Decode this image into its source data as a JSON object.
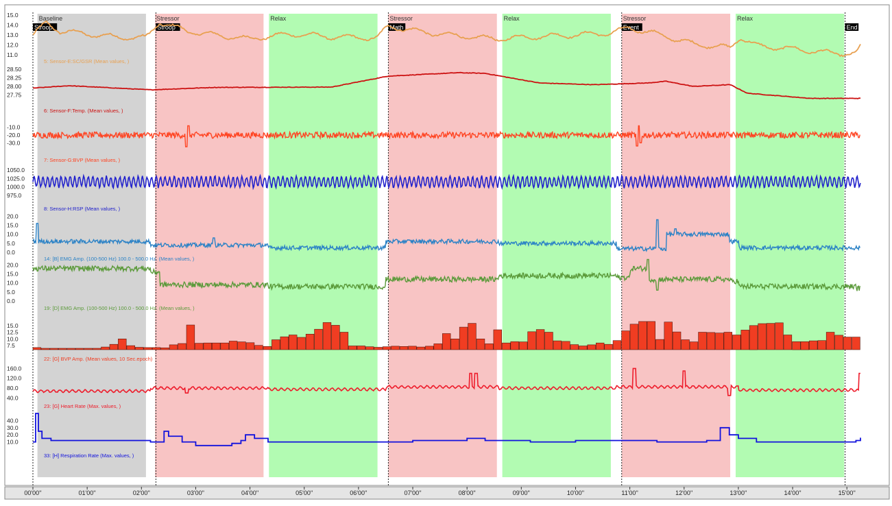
{
  "chart_data": {
    "type": "line",
    "time_range_sec": [
      0,
      915
    ],
    "x_ticks": [
      "00'00''",
      "01'00''",
      "02'00''",
      "03'00''",
      "04'00''",
      "05'00''",
      "06'00''",
      "07'00''",
      "08'00''",
      "09'00''",
      "10'00''",
      "11'00''",
      "12'00''",
      "13'00''",
      "14'00''",
      "15'00''"
    ],
    "phases": [
      {
        "label": "Baseline",
        "start": 5,
        "end": 125,
        "color": "#d3d3d3"
      },
      {
        "label": "Stressor",
        "start": 135,
        "end": 255,
        "color": "#f8c4c4"
      },
      {
        "label": "Relax",
        "start": 261,
        "end": 381,
        "color": "#b2fbb2"
      },
      {
        "label": "Stressor",
        "start": 393,
        "end": 513,
        "color": "#f8c4c4"
      },
      {
        "label": "Relax",
        "start": 519,
        "end": 639,
        "color": "#b2fbb2"
      },
      {
        "label": "Stressor",
        "start": 651,
        "end": 771,
        "color": "#f8c4c4"
      },
      {
        "label": "Relax",
        "start": 777,
        "end": 897,
        "color": "#b2fbb2"
      }
    ],
    "events": [
      {
        "label": "Stroop",
        "t": 0
      },
      {
        "label": "Stroop",
        "t": 136
      },
      {
        "label": "Math",
        "t": 393
      },
      {
        "label": "Event",
        "t": 651
      },
      {
        "label": "End",
        "t": 898
      }
    ],
    "series": [
      {
        "name": "5: Sensor-E:SC/GSR (Mean values, )",
        "color": "#e8a050",
        "type": "line",
        "ticks": [
          "15.0",
          "14.0",
          "13.0",
          "12.0",
          "11.0"
        ],
        "ylim": [
          11,
          15
        ],
        "points": [
          [
            0,
            13
          ],
          [
            15,
            14.2
          ],
          [
            30,
            13.4
          ],
          [
            60,
            13.1
          ],
          [
            90,
            12.8
          ],
          [
            125,
            12.7
          ],
          [
            140,
            14.3
          ],
          [
            170,
            13.4
          ],
          [
            200,
            13.0
          ],
          [
            240,
            12.6
          ],
          [
            255,
            12.8
          ],
          [
            290,
            13.1
          ],
          [
            330,
            12.8
          ],
          [
            381,
            12.7
          ],
          [
            393,
            13.9
          ],
          [
            430,
            13.3
          ],
          [
            470,
            12.9
          ],
          [
            513,
            12.6
          ],
          [
            550,
            12.8
          ],
          [
            600,
            13.0
          ],
          [
            639,
            13.2
          ],
          [
            660,
            13.7
          ],
          [
            690,
            13.1
          ],
          [
            730,
            12.1
          ],
          [
            771,
            11.7
          ],
          [
            782,
            12.8
          ],
          [
            800,
            11.9
          ],
          [
            840,
            11.6
          ],
          [
            880,
            11.2
          ],
          [
            910,
            11.1
          ],
          [
            915,
            11.8
          ]
        ]
      },
      {
        "name": "6: Sensor-F:Temp. (Mean values, )",
        "color": "#cc1111",
        "type": "line",
        "ticks": [
          "28.50",
          "28.25",
          "28.00",
          "27.75"
        ],
        "ylim": [
          27.6,
          28.6
        ],
        "points": [
          [
            0,
            27.95
          ],
          [
            40,
            28.02
          ],
          [
            130,
            27.9
          ],
          [
            200,
            27.97
          ],
          [
            330,
            27.98
          ],
          [
            393,
            28.3
          ],
          [
            470,
            28.4
          ],
          [
            500,
            28.38
          ],
          [
            560,
            28.1
          ],
          [
            620,
            28.05
          ],
          [
            680,
            28.1
          ],
          [
            700,
            28.15
          ],
          [
            730,
            28.0
          ],
          [
            771,
            28.05
          ],
          [
            790,
            27.8
          ],
          [
            860,
            27.65
          ],
          [
            915,
            27.65
          ]
        ]
      },
      {
        "name": "7: Sensor-G:BVP (Mean values, )",
        "color": "#ff4422",
        "type": "noise",
        "ticks": [
          "-10.0",
          "-20.0",
          "-30.0"
        ],
        "ylim": [
          -35,
          -5
        ],
        "baseline": -20,
        "amplitude": 4,
        "spikes": [
          [
            170,
            -35
          ],
          [
            172,
            -8
          ],
          [
            668,
            -34
          ],
          [
            670,
            -8
          ],
          [
            672,
            -30
          ]
        ]
      },
      {
        "name": "8: Sensor-H:RSP (Mean values, )",
        "color": "#2222cc",
        "type": "wave",
        "ticks": [
          "1050.0",
          "1025.0",
          "1000.0",
          "975.0"
        ],
        "ylim": [
          965,
          1060
        ],
        "baseline": 1015,
        "amplitude": 15,
        "period": 5
      },
      {
        "name": "14: [B] EMG Amp. (100-500 Hz)  100.0 - 500.0 Hz. (Mean values, )",
        "color": "#2b82c6",
        "type": "noise",
        "ticks": [
          "20.0",
          "15.0",
          "10.0",
          "5.0",
          "0.0"
        ],
        "ylim": [
          0,
          22
        ],
        "baseline": 6,
        "amplitude": 1.2,
        "segments": [
          [
            0,
            6
          ],
          [
            130,
            4
          ],
          [
            260,
            2.5
          ],
          [
            390,
            6
          ],
          [
            515,
            5
          ],
          [
            645,
            2
          ],
          [
            700,
            10
          ],
          [
            770,
            6
          ],
          [
            780,
            2.5
          ],
          [
            915,
            3
          ]
        ],
        "spikes": [
          [
            5,
            16
          ],
          [
            200,
            8
          ],
          [
            690,
            18
          ],
          [
            710,
            13
          ]
        ]
      },
      {
        "name": "19: [D] EMG Amp. (100-500 Hz)  100.0 - 500.0 Hz. (Mean values, )",
        "color": "#5b9a3a",
        "type": "noise",
        "ticks": [
          "20.0",
          "15.0",
          "10.0",
          "5.0",
          "0.0"
        ],
        "ylim": [
          0,
          22
        ],
        "baseline": 12,
        "amplitude": 1.5,
        "segments": [
          [
            0,
            18
          ],
          [
            130,
            16
          ],
          [
            140,
            9
          ],
          [
            260,
            8
          ],
          [
            390,
            12
          ],
          [
            515,
            14
          ],
          [
            645,
            13
          ],
          [
            660,
            18
          ],
          [
            680,
            12
          ],
          [
            770,
            11
          ],
          [
            780,
            8
          ],
          [
            910,
            7
          ],
          [
            915,
            10
          ]
        ],
        "spikes": [
          [
            680,
            23
          ],
          [
            690,
            6
          ]
        ]
      },
      {
        "name": "22: [G] BVP Amp. (Mean values, 10 Sec.epoch)",
        "color": "#f03d22",
        "type": "bar",
        "ticks": [
          "15.0",
          "12.5",
          "10.0",
          "7.5"
        ],
        "ylim": [
          6,
          18
        ],
        "values": [
          6.8,
          6.5,
          6.5,
          6.5,
          6.5,
          6.5,
          6.5,
          6.5,
          7,
          8,
          10,
          7.5,
          6.9,
          6.8,
          6.8,
          6.7,
          7.8,
          8.3,
          15.2,
          8.4,
          8.5,
          8.5,
          8.5,
          9.2,
          8.9,
          8.6,
          7.6,
          7.2,
          9.7,
          10.8,
          11.5,
          10.6,
          11.8,
          13.6,
          16.1,
          15.1,
          12.5,
          7.4,
          7.4,
          7.1,
          6.9,
          7.1,
          7.3,
          7.2,
          7.3,
          7.0,
          7.3,
          8.2,
          12.0,
          10.0,
          14.4,
          15.8,
          10.0,
          8.2,
          13.4,
          8.5,
          9.0,
          8.9,
          12.7,
          13.5,
          12.5,
          9.3,
          9.1,
          7.9,
          7.4,
          7.8,
          8.5,
          8.0,
          9.4,
          13.0,
          15.5,
          16.5,
          16.5,
          9.8,
          16.3,
          12.6,
          9.7,
          8.9,
          12.5,
          12.4,
          12.2,
          12.5,
          11.5,
          13.3,
          15.0,
          15.7,
          15.8,
          16.0,
          11.5,
          9.0,
          9.0,
          9.3,
          9.4,
          12.5,
          11.4,
          10.7,
          10.7
        ]
      },
      {
        "name": "23: [G] Heart Rate (Max. values, )",
        "color": "#ee1c2b",
        "type": "wave",
        "ticks": [
          "160.0",
          "120.0",
          "80.0",
          "40.0"
        ],
        "ylim": [
          30,
          175
        ],
        "baseline": 68,
        "amplitude": 5,
        "period": 7,
        "segments": [
          [
            0,
            68
          ],
          [
            130,
            80
          ],
          [
            260,
            75
          ],
          [
            390,
            85
          ],
          [
            515,
            80
          ],
          [
            645,
            85
          ],
          [
            780,
            72
          ],
          [
            910,
            70
          ]
        ],
        "spikes": [
          [
            170,
            60
          ],
          [
            484,
            140
          ],
          [
            490,
            140
          ],
          [
            665,
            160
          ],
          [
            720,
            150
          ],
          [
            770,
            50
          ],
          [
            915,
            140
          ]
        ]
      },
      {
        "name": "33: [H] Respiration Rate (Max. values, )",
        "color": "#1111dd",
        "type": "step",
        "ticks": [
          "40.0",
          "30.0",
          "20.0",
          "10.0"
        ],
        "ylim": [
          0,
          50
        ],
        "points": [
          [
            0,
            10
          ],
          [
            3,
            50
          ],
          [
            6,
            25
          ],
          [
            10,
            15
          ],
          [
            20,
            12
          ],
          [
            100,
            12
          ],
          [
            130,
            10
          ],
          [
            145,
            25
          ],
          [
            150,
            18
          ],
          [
            165,
            10
          ],
          [
            180,
            5
          ],
          [
            220,
            8
          ],
          [
            230,
            12
          ],
          [
            235,
            20
          ],
          [
            245,
            15
          ],
          [
            260,
            10
          ],
          [
            400,
            10
          ],
          [
            420,
            12
          ],
          [
            480,
            15
          ],
          [
            500,
            12
          ],
          [
            550,
            10
          ],
          [
            600,
            12
          ],
          [
            690,
            10
          ],
          [
            745,
            12
          ],
          [
            760,
            30
          ],
          [
            770,
            20
          ],
          [
            780,
            15
          ],
          [
            800,
            10
          ],
          [
            910,
            12
          ],
          [
            915,
            16
          ]
        ]
      }
    ]
  }
}
